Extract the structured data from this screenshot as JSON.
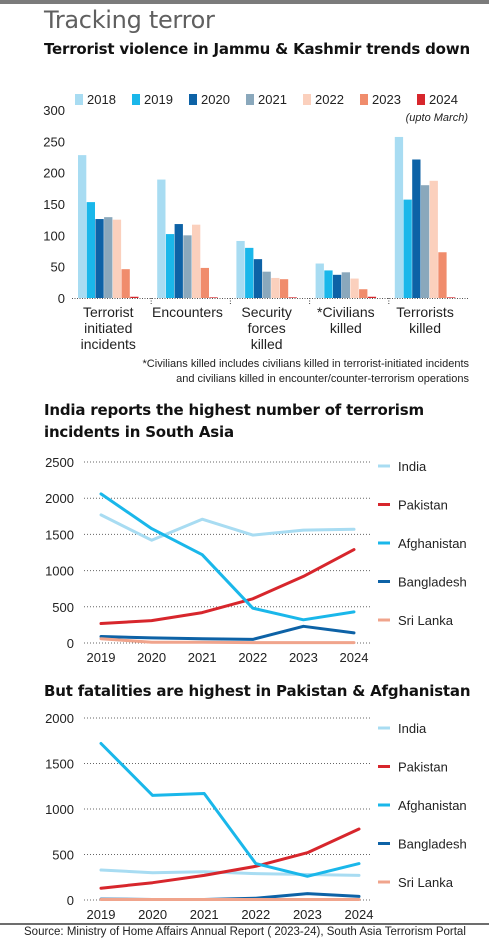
{
  "header": {
    "title": "Tracking terror",
    "chart1_title": "Terrorist violence in Jammu & Kashmir trends down",
    "chart2_title_line1": "India reports the highest number of terrorism",
    "chart2_title_line2": "incidents in South Asia",
    "chart3_title": "But fatalities are highest in Pakistan & Afghanistan"
  },
  "footnote": {
    "line1": "*Civilians killed includes civilians killed in terrorist-initiated incidents",
    "line2": "and civilians killed in encounter/counter-terrorism operations"
  },
  "source": "Source: Ministry of Home Affairs Annual Report ( 2023-24), South Asia Terrorism Portal",
  "chart_data": [
    {
      "type": "bar",
      "title": "Terrorist violence in Jammu & Kashmir trends down",
      "ylim": [
        0,
        300
      ],
      "yticks": [
        0,
        50,
        100,
        150,
        200,
        250,
        300
      ],
      "legend_position": "top",
      "legend_note": "(upto March)",
      "categories": [
        [
          "Terrorist",
          "initiated",
          "incidents"
        ],
        [
          "Encounters"
        ],
        [
          "Security",
          "forces",
          "killed"
        ],
        [
          "*Civilians",
          "killed"
        ],
        [
          "Terrorists",
          "killed"
        ]
      ],
      "series": [
        {
          "name": "2018",
          "color": "#a8dcf2",
          "values": [
            228,
            189,
            91,
            55,
            257
          ]
        },
        {
          "name": "2019",
          "color": "#1ab7ea",
          "values": [
            153,
            102,
            80,
            44,
            157
          ]
        },
        {
          "name": "2020",
          "color": "#0d62a6",
          "values": [
            126,
            118,
            62,
            37,
            221
          ]
        },
        {
          "name": "2021",
          "color": "#8aa8bc",
          "values": [
            129,
            100,
            42,
            41,
            180
          ]
        },
        {
          "name": "2022",
          "color": "#fbd0bd",
          "values": [
            125,
            117,
            32,
            31,
            187
          ]
        },
        {
          "name": "2023",
          "color": "#f08c6c",
          "values": [
            46,
            48,
            30,
            14,
            73
          ]
        },
        {
          "name": "2024",
          "color": "#d7262c",
          "values": [
            2,
            1,
            1,
            2,
            1
          ]
        }
      ]
    },
    {
      "type": "line",
      "title": "India reports the highest number of terrorism incidents in South Asia",
      "x": [
        "2019",
        "2020",
        "2021",
        "2022",
        "2023",
        "2024"
      ],
      "ylim": [
        0,
        2500
      ],
      "yticks": [
        0,
        500,
        1000,
        1500,
        2000,
        2500
      ],
      "grid": true,
      "series": [
        {
          "name": "India",
          "color": "#a8dcf2",
          "values": [
            1770,
            1420,
            1710,
            1490,
            1560,
            1570
          ]
        },
        {
          "name": "Pakistan",
          "color": "#d7262c",
          "values": [
            270,
            310,
            420,
            610,
            920,
            1290
          ]
        },
        {
          "name": "Afghanistan",
          "color": "#1ab7ea",
          "values": [
            2060,
            1580,
            1220,
            480,
            320,
            430
          ]
        },
        {
          "name": "Bangladesh",
          "color": "#0d62a6",
          "values": [
            90,
            70,
            60,
            50,
            230,
            140
          ]
        },
        {
          "name": "Sri Lanka",
          "color": "#f0a48c",
          "values": [
            60,
            10,
            10,
            5,
            5,
            5
          ]
        }
      ]
    },
    {
      "type": "line",
      "title": "But fatalities are highest in Pakistan & Afghanistan",
      "x": [
        "2019",
        "2020",
        "2021",
        "2022",
        "2023",
        "2024"
      ],
      "ylim": [
        0,
        2000
      ],
      "yticks": [
        0,
        500,
        1000,
        1500,
        2000
      ],
      "grid": true,
      "series": [
        {
          "name": "India",
          "color": "#a8dcf2",
          "values": [
            330,
            300,
            310,
            290,
            280,
            270
          ]
        },
        {
          "name": "Pakistan",
          "color": "#d7262c",
          "values": [
            130,
            190,
            270,
            370,
            520,
            780
          ]
        },
        {
          "name": "Afghanistan",
          "color": "#1ab7ea",
          "values": [
            1720,
            1150,
            1170,
            400,
            260,
            400
          ]
        },
        {
          "name": "Bangladesh",
          "color": "#0d62a6",
          "values": [
            10,
            5,
            5,
            20,
            70,
            40
          ]
        },
        {
          "name": "Sri Lanka",
          "color": "#f0a48c",
          "values": [
            5,
            5,
            5,
            5,
            5,
            5
          ]
        }
      ]
    }
  ]
}
